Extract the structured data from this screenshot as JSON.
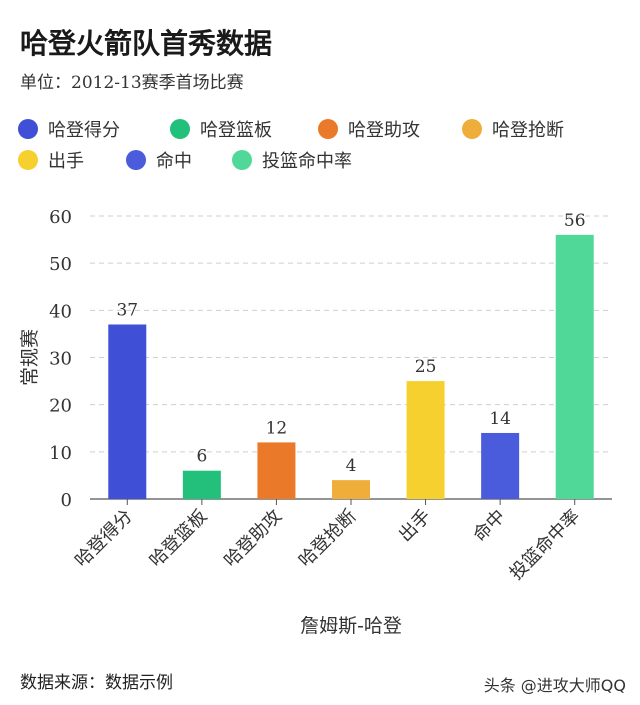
{
  "title": "哈登火箭队首秀数据",
  "subtitle": "单位：2012-13赛季首场比赛",
  "legend": [
    {
      "label": "哈登得分",
      "color": "#3f4fd6"
    },
    {
      "label": "哈登篮板",
      "color": "#22c07a"
    },
    {
      "label": "哈登助攻",
      "color": "#ea7a2a"
    },
    {
      "label": "哈登抢断",
      "color": "#efae3a"
    },
    {
      "label": "出手",
      "color": "#f6d02f"
    },
    {
      "label": "命中",
      "color": "#4a5bdc"
    },
    {
      "label": "投篮命中率",
      "color": "#4fd897"
    }
  ],
  "chart_data": {
    "type": "bar",
    "categories": [
      "哈登得分",
      "哈登篮板",
      "哈登助攻",
      "哈登抢断",
      "出手",
      "命中",
      "投篮命中率"
    ],
    "values": [
      37,
      6,
      12,
      4,
      25,
      14,
      56
    ],
    "data_labels": [
      "37",
      "6",
      "12",
      "4",
      "25",
      "14",
      "56"
    ],
    "colors": [
      "#3f4fd6",
      "#22c07a",
      "#ea7a2a",
      "#efae3a",
      "#f6d02f",
      "#4a5bdc",
      "#4fd897"
    ],
    "xlabel": "詹姆斯-哈登",
    "ylabel": "常规赛",
    "ylim": [
      0,
      60
    ],
    "yticks": [
      "0",
      "10",
      "20",
      "30",
      "40",
      "50",
      "60"
    ],
    "grid": true
  },
  "footer": {
    "source": "数据来源：数据示例",
    "watermark": "头条 @进攻大师QQ"
  }
}
